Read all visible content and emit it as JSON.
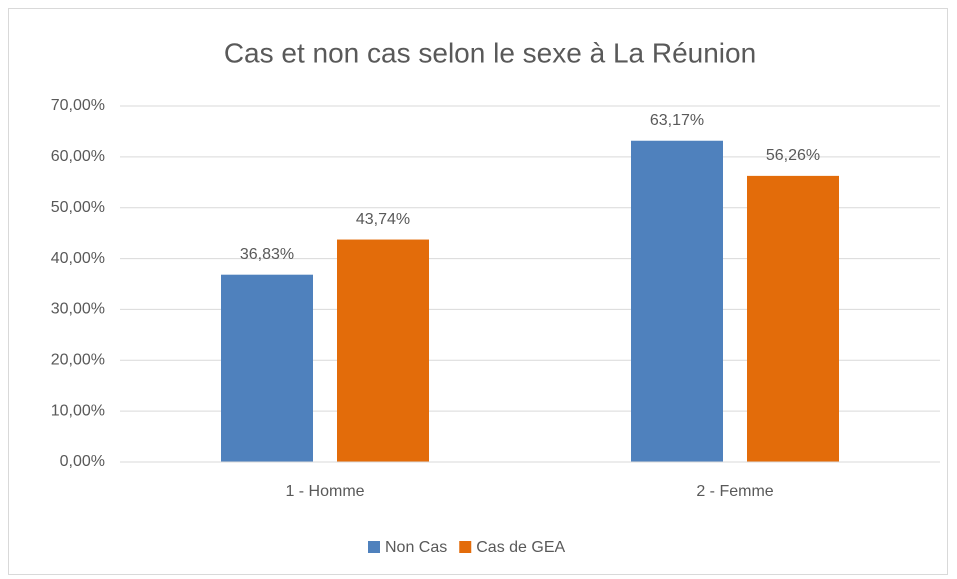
{
  "chart_data": {
    "type": "bar",
    "title": "Cas et non cas selon le sexe à La Réunion",
    "categories": [
      "1 - Homme",
      "2 - Femme"
    ],
    "series": [
      {
        "name": "Non Cas",
        "color": "#4f81bd",
        "values": [
          36.83,
          63.17
        ],
        "value_labels": [
          "36,83%",
          "63,17%"
        ]
      },
      {
        "name": "Cas de GEA",
        "color": "#e36c0a",
        "values": [
          43.74,
          56.26
        ],
        "value_labels": [
          "43,74%",
          "56,26%"
        ]
      }
    ],
    "ylim": [
      0,
      70
    ],
    "yticks": [
      {
        "value": 0,
        "label": "0,00%"
      },
      {
        "value": 10,
        "label": "10,00%"
      },
      {
        "value": 20,
        "label": "20,00%"
      },
      {
        "value": 30,
        "label": "30,00%"
      },
      {
        "value": 40,
        "label": "40,00%"
      },
      {
        "value": 50,
        "label": "50,00%"
      },
      {
        "value": 60,
        "label": "60,00%"
      },
      {
        "value": 70,
        "label": "70,00%"
      }
    ],
    "grid": true,
    "legend": "bottom"
  }
}
